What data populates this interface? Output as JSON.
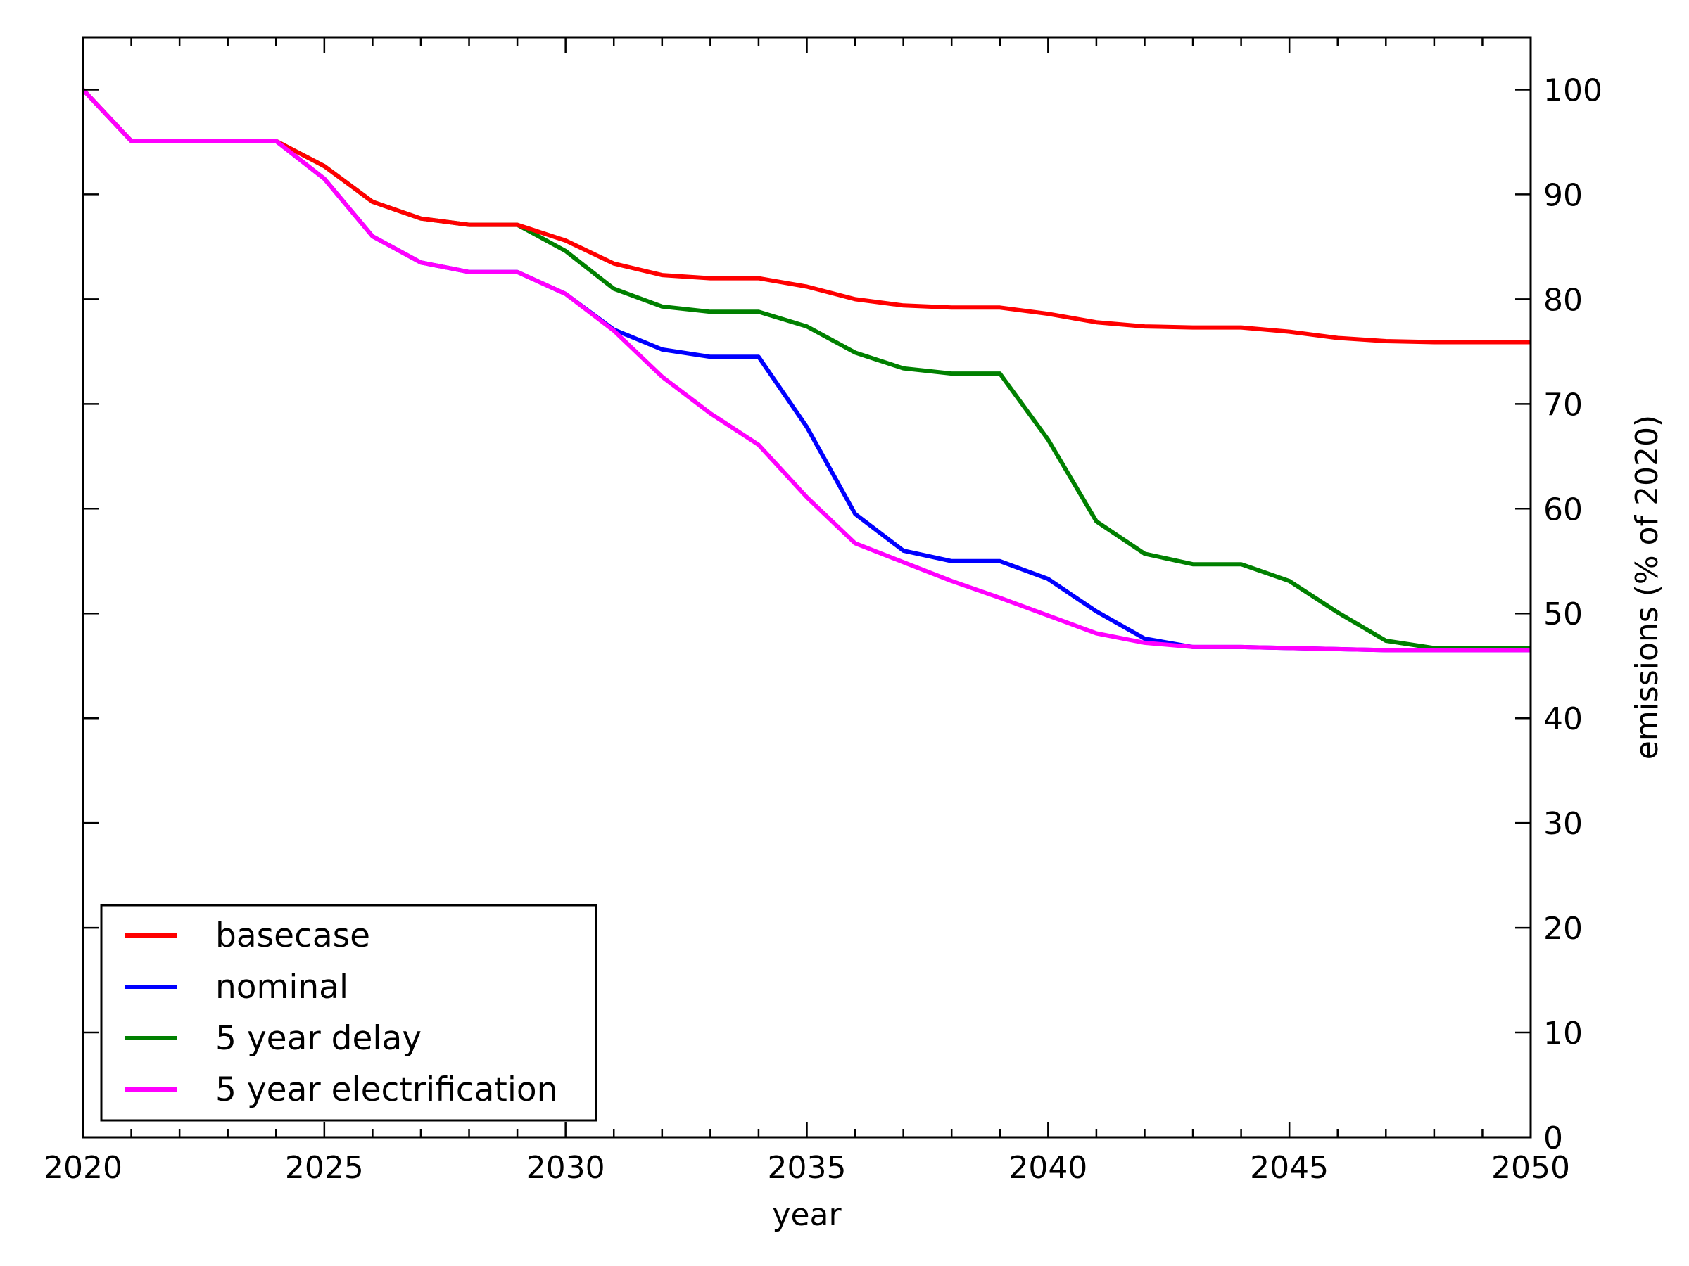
{
  "chart_data": {
    "type": "line",
    "title": "",
    "xlabel": "year",
    "ylabel": "emissions (% of 2020)",
    "y_axis_position": "right",
    "xlim": [
      2020,
      2050
    ],
    "ylim": [
      0,
      105
    ],
    "x_ticks": [
      2020,
      2025,
      2030,
      2035,
      2040,
      2045,
      2050
    ],
    "x_tick_labels": [
      "2020",
      "2025",
      "2030",
      "2035",
      "2040",
      "2045",
      "2050"
    ],
    "y_ticks": [
      0,
      10,
      20,
      30,
      40,
      50,
      60,
      70,
      80,
      90,
      100
    ],
    "y_tick_labels": [
      "0",
      "10",
      "20",
      "30",
      "40",
      "50",
      "60",
      "70",
      "80",
      "90",
      "100"
    ],
    "grid": false,
    "legend_position": "lower-left",
    "x": [
      2020,
      2021,
      2022,
      2023,
      2024,
      2025,
      2026,
      2027,
      2028,
      2029,
      2030,
      2031,
      2032,
      2033,
      2034,
      2035,
      2036,
      2037,
      2038,
      2039,
      2040,
      2041,
      2042,
      2043,
      2044,
      2045,
      2046,
      2047,
      2048,
      2049,
      2050
    ],
    "series": [
      {
        "name": "basecase",
        "color": "#ff0000",
        "values": [
          100,
          95.1,
          95.1,
          95.1,
          95.1,
          92.7,
          89.3,
          87.7,
          87.1,
          87.1,
          85.6,
          83.4,
          82.3,
          82.0,
          82.0,
          81.2,
          80.0,
          79.4,
          79.2,
          79.2,
          78.6,
          77.8,
          77.4,
          77.3,
          77.3,
          76.9,
          76.3,
          76.0,
          75.9,
          75.9,
          75.9
        ]
      },
      {
        "name": "nominal",
        "color": "#0000ff",
        "values": [
          100,
          95.1,
          95.1,
          95.1,
          95.1,
          91.5,
          86.0,
          83.5,
          82.6,
          82.6,
          80.5,
          77.1,
          75.2,
          74.5,
          74.5,
          67.8,
          59.5,
          56.0,
          55.0,
          55.0,
          53.3,
          50.2,
          47.6,
          46.8,
          46.8,
          46.7,
          46.6,
          46.5,
          46.5,
          46.5,
          46.5
        ]
      },
      {
        "name": "5 year delay",
        "color": "#008000",
        "values": [
          100,
          95.1,
          95.1,
          95.1,
          95.1,
          92.7,
          89.3,
          87.7,
          87.1,
          87.1,
          84.6,
          81.0,
          79.3,
          78.8,
          78.8,
          77.4,
          74.9,
          73.4,
          72.9,
          72.9,
          66.6,
          58.8,
          55.7,
          54.7,
          54.7,
          53.1,
          50.1,
          47.4,
          46.7,
          46.7,
          46.7
        ]
      },
      {
        "name": "5 year electrification",
        "color": "#ff00ff",
        "values": [
          100,
          95.1,
          95.1,
          95.1,
          95.1,
          91.5,
          86.0,
          83.5,
          82.6,
          82.6,
          80.5,
          77.0,
          72.6,
          69.1,
          66.1,
          61.1,
          56.7,
          54.9,
          53.1,
          51.5,
          49.8,
          48.1,
          47.2,
          46.8,
          46.8,
          46.7,
          46.6,
          46.5,
          46.5,
          46.5,
          46.5
        ]
      }
    ]
  }
}
